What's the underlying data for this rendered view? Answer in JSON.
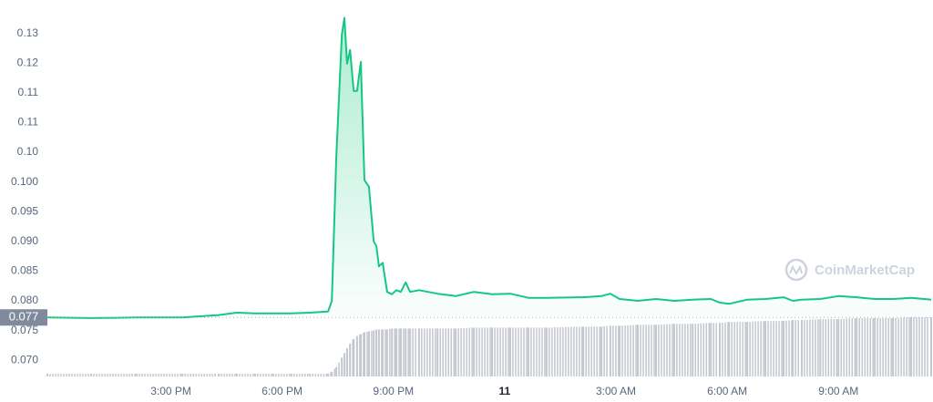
{
  "chart_data": {
    "type": "line",
    "x": [
      11.67,
      12.85,
      14.08,
      15.31,
      16.29,
      16.78,
      17.27,
      17.76,
      18.25,
      18.75,
      19.24,
      19.34,
      19.46,
      19.61,
      19.68,
      19.75,
      19.83,
      19.93,
      20.02,
      20.12,
      20.22,
      20.34,
      20.47,
      20.54,
      20.61,
      20.71,
      20.83,
      20.96,
      21.08,
      21.2,
      21.33,
      21.45,
      21.69,
      22.19,
      22.68,
      23.17,
      23.66,
      24.15,
      24.64,
      25.13,
      26.12,
      26.61,
      26.85,
      27.1,
      27.59,
      28.08,
      28.57,
      29.07,
      29.56,
      29.8,
      30.05,
      30.54,
      31.03,
      31.52,
      31.77,
      32.01,
      32.51,
      33.0,
      33.49,
      33.98,
      34.47,
      34.96,
      35.5
    ],
    "series": [
      {
        "color": "#16c784",
        "values": [
          0.0772,
          0.0771,
          0.0772,
          0.0772,
          0.0776,
          0.078,
          0.0779,
          0.0779,
          0.0779,
          0.078,
          0.0782,
          0.08,
          0.1042,
          0.1248,
          0.1276,
          0.1199,
          0.1222,
          0.1153,
          0.1153,
          0.1202,
          0.1003,
          0.0992,
          0.09,
          0.0892,
          0.0858,
          0.0864,
          0.0815,
          0.0811,
          0.0818,
          0.0815,
          0.0831,
          0.0815,
          0.0818,
          0.0812,
          0.0808,
          0.0815,
          0.0811,
          0.0812,
          0.0805,
          0.0805,
          0.0806,
          0.0808,
          0.0812,
          0.0803,
          0.08,
          0.0803,
          0.08,
          0.0802,
          0.0803,
          0.0797,
          0.0795,
          0.0802,
          0.0803,
          0.0806,
          0.08,
          0.0802,
          0.0803,
          0.0808,
          0.0806,
          0.0803,
          0.0803,
          0.0805,
          0.0802
        ]
      },
      {
        "color": "#c3c7cf",
        "values": [
          3,
          3,
          3,
          3,
          3,
          3,
          3,
          3,
          3,
          3,
          3,
          5,
          10,
          20,
          25,
          30,
          35,
          40,
          43,
          45,
          47,
          48,
          49,
          50,
          50,
          50,
          50,
          51,
          51,
          51,
          51,
          51,
          51,
          51,
          51,
          52,
          52,
          52,
          52,
          52,
          53,
          53,
          54,
          54,
          55,
          55,
          56,
          56,
          57,
          57,
          58,
          58,
          59,
          59,
          60,
          60,
          61,
          61,
          62,
          62,
          62,
          63,
          63
        ]
      }
    ],
    "xlim": [
      11.67,
      35.5
    ],
    "xticks": [
      {
        "value": 15,
        "label": "3:00 PM"
      },
      {
        "value": 18,
        "label": "6:00 PM"
      },
      {
        "value": 21,
        "label": "9:00 PM"
      },
      {
        "value": 24,
        "label": "11"
      },
      {
        "value": 27,
        "label": "3:00 AM"
      },
      {
        "value": 30,
        "label": "6:00 AM"
      },
      {
        "value": 33,
        "label": "9:00 AM"
      }
    ],
    "ylim": [
      0.06727,
      0.12908
    ],
    "yticks": [
      {
        "value": 0.07,
        "label": "0.070"
      },
      0.075,
      {
        "value": 0.08,
        "label": "0.080"
      },
      0.085,
      {
        "value": 0.09,
        "label": "0.090"
      },
      0.095,
      {
        "value": 0.1,
        "label": "0.100"
      },
      {
        "value": 0.105,
        "label": "0.10"
      },
      0.11,
      {
        "value": 0.115,
        "label": "0.11"
      },
      0.12,
      {
        "value": 0.125,
        "label": "0.13"
      }
    ],
    "current_price": {
      "value": 0.0772,
      "label": "0.077"
    },
    "watermark": "CoinMarketCap",
    "grid": false
  }
}
